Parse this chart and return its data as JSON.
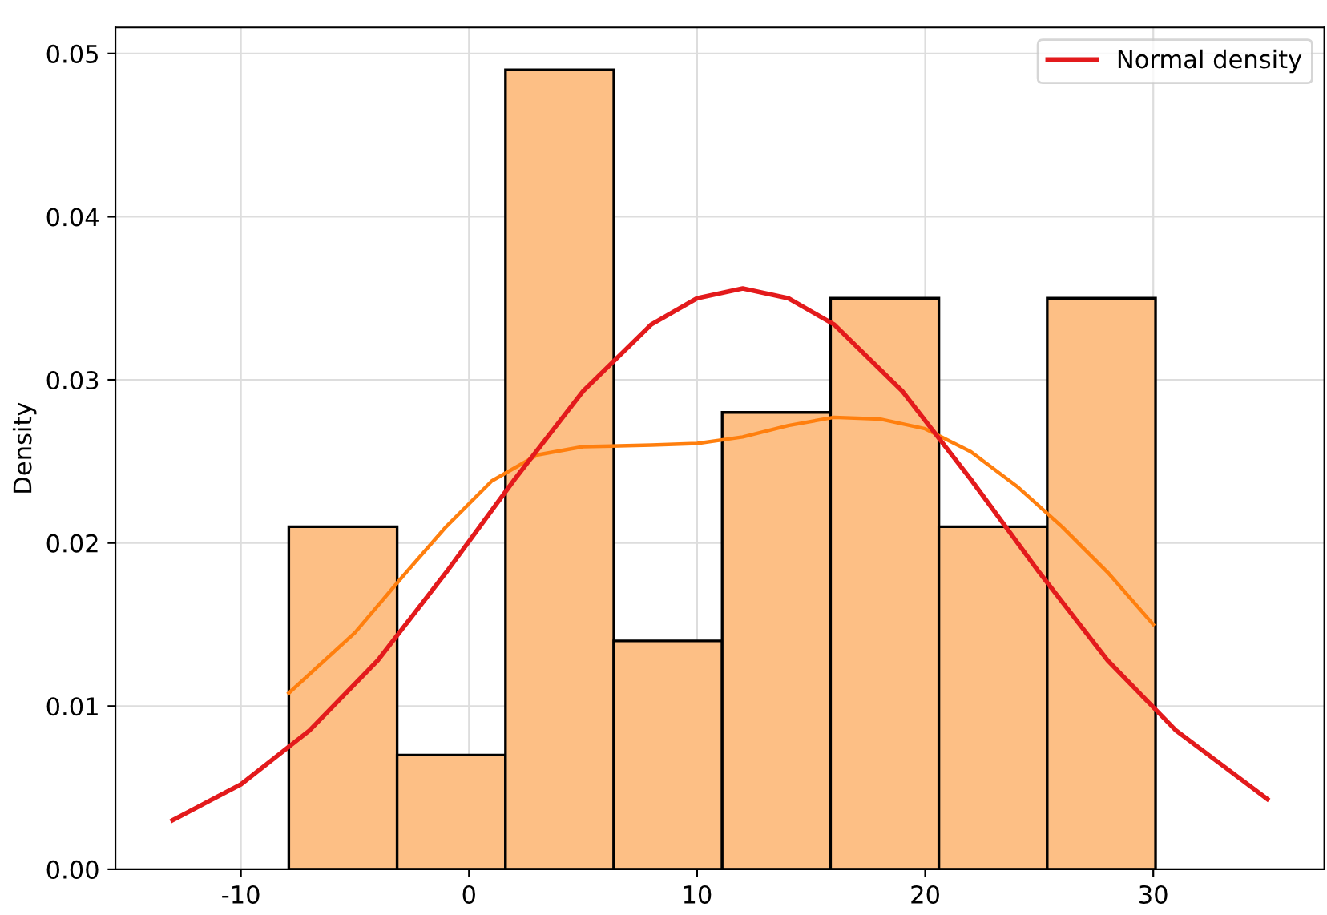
{
  "chart_data": {
    "type": "histogram",
    "ylabel": "Density",
    "bins": [
      -7.9,
      -3.15,
      1.6,
      6.35,
      11.1,
      15.85,
      20.6,
      25.35,
      30.1
    ],
    "values": [
      0.021,
      0.007,
      0.049,
      0.014,
      0.028,
      0.035,
      0.021,
      0.035
    ],
    "color": "#fdbf85",
    "series": [
      {
        "type": "line",
        "color": "#ff7f0e",
        "x": [
          -7.9,
          -5,
          -3,
          -1,
          1,
          3,
          5,
          8,
          10,
          12,
          14,
          16,
          18,
          20,
          22,
          24,
          26,
          28,
          30
        ],
        "values": [
          0.0108,
          0.0145,
          0.0178,
          0.021,
          0.0238,
          0.0254,
          0.0259,
          0.026,
          0.0261,
          0.0265,
          0.0272,
          0.0277,
          0.0276,
          0.027,
          0.0256,
          0.0235,
          0.021,
          0.0182,
          0.015
        ]
      },
      {
        "type": "line",
        "name": "Normal density",
        "color": "#e31a1c",
        "x": [
          -13,
          -10,
          -7,
          -4,
          -1,
          2,
          5,
          8,
          10,
          12,
          14,
          16,
          19,
          22,
          25,
          28,
          31,
          35
        ],
        "values": [
          0.003,
          0.0052,
          0.0085,
          0.0128,
          0.0182,
          0.0239,
          0.0293,
          0.0334,
          0.035,
          0.0356,
          0.035,
          0.0334,
          0.0293,
          0.0239,
          0.0182,
          0.0128,
          0.0085,
          0.0043
        ]
      }
    ],
    "xlim": [
      -15.5,
      37.5
    ],
    "ylim": [
      0,
      0.0516
    ],
    "xticks": [
      -10,
      0,
      10,
      20,
      30
    ],
    "yticks": [
      {
        "value": 0,
        "label": "0.00"
      },
      {
        "value": 0.01,
        "label": "0.01"
      },
      {
        "value": 0.02,
        "label": "0.02"
      },
      {
        "value": 0.03,
        "label": "0.03"
      },
      {
        "value": 0.04,
        "label": "0.04"
      },
      {
        "value": 0.05,
        "label": "0.05"
      }
    ],
    "grid": true,
    "legend": "top right"
  }
}
